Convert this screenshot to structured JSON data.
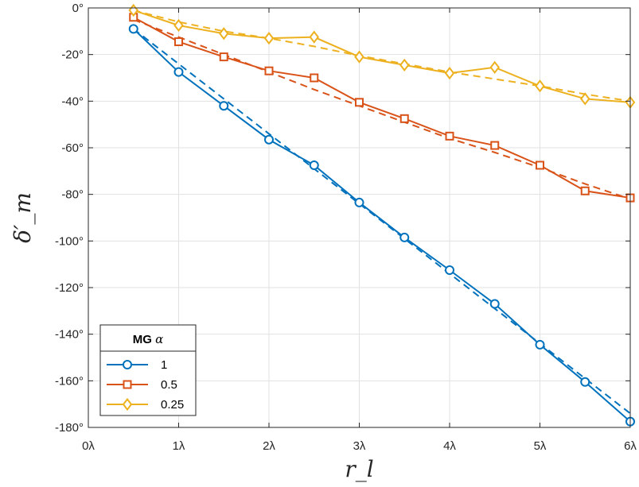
{
  "chart_data": {
    "type": "line",
    "title": "",
    "xlabel": "r_l",
    "ylabel": "δ′_m",
    "xlim": [
      0,
      6
    ],
    "ylim": [
      -180,
      0
    ],
    "xticks": [
      0,
      1,
      2,
      3,
      4,
      5,
      6
    ],
    "xtick_labels": [
      "0λ",
      "1λ",
      "2λ",
      "3λ",
      "4λ",
      "5λ",
      "6λ"
    ],
    "yticks": [
      0,
      -20,
      -40,
      -60,
      -80,
      -100,
      -120,
      -140,
      -160,
      -180
    ],
    "ytick_labels": [
      "0°",
      "-20°",
      "-40°",
      "-60°",
      "-80°",
      "-100°",
      "-120°",
      "-140°",
      "-160°",
      "-180°"
    ],
    "grid": true,
    "legend": {
      "title_prefix": "MG",
      "title_symbol": "α",
      "placement": "bottom-left"
    },
    "x": [
      0.5,
      1,
      1.5,
      2,
      2.5,
      3,
      3.5,
      4,
      4.5,
      5,
      5.5,
      6
    ],
    "series": [
      {
        "name": "1",
        "color": "#0072BD",
        "marker": "circle",
        "values": [
          -9,
          -27.5,
          -42,
          -56.5,
          -67.5,
          -83.5,
          -98.5,
          -112.5,
          -127,
          -144.5,
          -160.5,
          -177.5
        ],
        "fit": [
          -9,
          -24,
          -39,
          -54,
          -69,
          -84,
          -99,
          -114,
          -129,
          -144,
          -159,
          -174
        ]
      },
      {
        "name": "0.5",
        "color": "#D95319",
        "marker": "square",
        "values": [
          -4,
          -14.5,
          -21,
          -27,
          -30,
          -40.5,
          -47.5,
          -55,
          -59,
          -67.5,
          -78.5,
          -81.5
        ],
        "fit": [
          -5,
          -12.5,
          -20,
          -27.5,
          -35,
          -42,
          -49,
          -56,
          -62,
          -68.5,
          -75.5,
          -82
        ]
      },
      {
        "name": "0.25",
        "color": "#EDB120",
        "marker": "diamond",
        "values": [
          -1,
          -7.5,
          -11,
          -13,
          -12.5,
          -21,
          -24.5,
          -28,
          -25.5,
          -33.5,
          -39,
          -40.5
        ],
        "fit": [
          -1,
          -6,
          -10,
          -13,
          -16.5,
          -20.5,
          -24,
          -27.5,
          -30.5,
          -33.5,
          -37,
          -40
        ]
      }
    ]
  }
}
